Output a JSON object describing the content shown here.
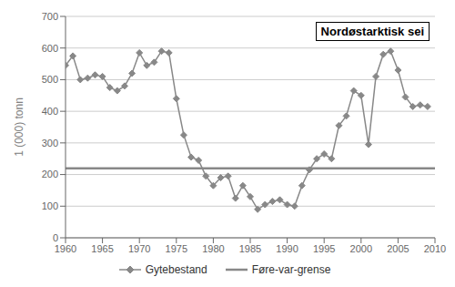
{
  "chart_data": {
    "type": "line",
    "title": "Nordøstarktisk sei",
    "y_label": "1 (000) tonn",
    "x": [
      1960,
      1961,
      1962,
      1963,
      1964,
      1965,
      1966,
      1967,
      1968,
      1969,
      1970,
      1971,
      1972,
      1973,
      1974,
      1975,
      1976,
      1977,
      1978,
      1979,
      1980,
      1981,
      1982,
      1983,
      1984,
      1985,
      1986,
      1987,
      1988,
      1989,
      1990,
      1991,
      1992,
      1993,
      1994,
      1995,
      1996,
      1997,
      1998,
      1999,
      2000,
      2001,
      2002,
      2003,
      2004,
      2005,
      2006,
      2007,
      2008,
      2009
    ],
    "series": [
      {
        "name": "Gytebestand",
        "color": "#888888",
        "marker": "diamond",
        "values": [
          545,
          575,
          500,
          505,
          515,
          510,
          475,
          465,
          480,
          520,
          585,
          545,
          555,
          590,
          585,
          440,
          325,
          255,
          245,
          195,
          165,
          190,
          195,
          125,
          165,
          130,
          90,
          105,
          115,
          120,
          105,
          100,
          165,
          215,
          250,
          265,
          250,
          355,
          385,
          465,
          450,
          295,
          510,
          580,
          590,
          530,
          445,
          415,
          420,
          415
        ]
      },
      {
        "name": "Føre-var-grense",
        "color": "#888888",
        "type": "hline",
        "y": 220
      }
    ],
    "xlim": [
      1960,
      2010
    ],
    "ylim": [
      0,
      700
    ],
    "xticks": [
      1960,
      1965,
      1970,
      1975,
      1980,
      1985,
      1990,
      1995,
      2000,
      2005,
      2010
    ],
    "yticks": [
      0,
      100,
      200,
      300,
      400,
      500,
      600,
      700
    ],
    "grid": "y",
    "legend": "bottom"
  }
}
